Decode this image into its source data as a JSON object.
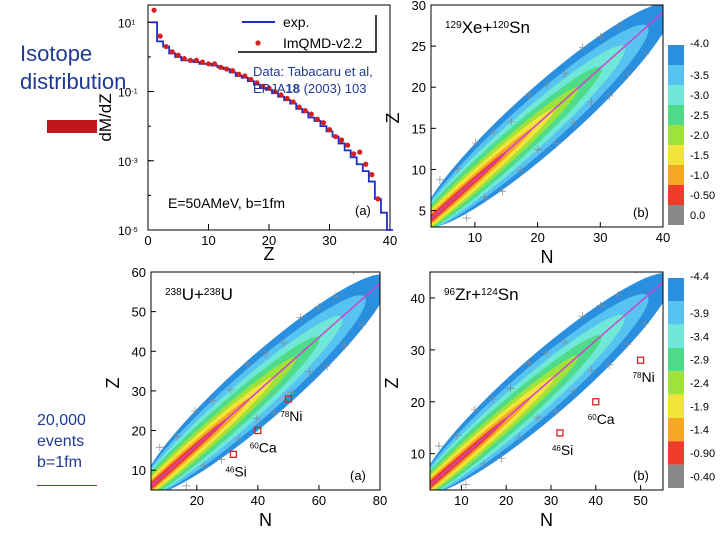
{
  "side": {
    "title_line1": "Isotope",
    "title_line2": "distribution",
    "marker_color": "#c0171d",
    "events_line1": "20,000",
    "events_line2": "events",
    "events_line3": "b=1fm"
  },
  "colors": {
    "accent_text": "#1f3a93",
    "exp_line": "#1f2fbf",
    "model_points": "#d42020",
    "diag_line": "#cc44cc",
    "square_marker": "#dd2020"
  },
  "chart_data": [
    {
      "id": "dmdz",
      "type": "line",
      "ylabel": "dM/dZ",
      "xlabel": "Z",
      "panel_label": "(a)",
      "xlim": [
        0,
        40
      ],
      "ylim_log10": [
        -5,
        1.5
      ],
      "x_ticks": [
        "0",
        "10",
        "20",
        "30",
        "40"
      ],
      "y_ticks": [
        {
          "base": "10",
          "exp": "1"
        },
        {
          "base": "10",
          "exp": "-1"
        },
        {
          "base": "10",
          "exp": "-3"
        },
        {
          "base": "10",
          "exp": "-5"
        }
      ],
      "legend": {
        "exp": "exp.",
        "model": "ImQMD-v2.2"
      },
      "data_note": "Data: Tabacaru et al,",
      "data_note2_pre": "EPJA",
      "data_note2_bold": "18",
      "data_note2_post": " (2003) 103",
      "condition": "E=50AMeV, b=1fm",
      "series": [
        {
          "name": "exp.",
          "style": "step",
          "x": [
            1,
            2,
            3,
            4,
            5,
            6,
            7,
            8,
            9,
            10,
            11,
            12,
            13,
            14,
            15,
            16,
            17,
            18,
            19,
            20,
            21,
            22,
            23,
            24,
            25,
            26,
            27,
            28,
            29,
            30,
            31,
            32,
            33,
            34,
            35,
            36,
            37,
            38,
            39,
            40
          ],
          "log10_y": [
            1.0,
            0.45,
            0.3,
            0.1,
            0.0,
            -0.1,
            -0.1,
            -0.15,
            -0.2,
            -0.2,
            -0.25,
            -0.3,
            -0.35,
            -0.45,
            -0.55,
            -0.6,
            -0.7,
            -0.8,
            -0.9,
            -0.95,
            -1.05,
            -1.15,
            -1.25,
            -1.35,
            -1.5,
            -1.6,
            -1.75,
            -1.85,
            -2.0,
            -2.15,
            -2.3,
            -2.5,
            -2.7,
            -2.9,
            -3.1,
            -3.3,
            -3.6,
            -4.1,
            -4.5,
            -5.0
          ]
        },
        {
          "name": "ImQMD-v2.2",
          "style": "points",
          "x": [
            1,
            2,
            3,
            4,
            5,
            6,
            7,
            8,
            9,
            10,
            11,
            12,
            13,
            14,
            15,
            16,
            17,
            18,
            19,
            20,
            21,
            22,
            23,
            24,
            25,
            26,
            27,
            28,
            29,
            30,
            31,
            32,
            33,
            34,
            35,
            36,
            37,
            38
          ],
          "log10_y": [
            1.35,
            0.6,
            0.3,
            0.15,
            0.05,
            -0.05,
            -0.1,
            -0.1,
            -0.15,
            -0.2,
            -0.2,
            -0.3,
            -0.35,
            -0.4,
            -0.5,
            -0.55,
            -0.65,
            -0.75,
            -0.85,
            -0.9,
            -1.0,
            -1.1,
            -1.2,
            -1.3,
            -1.45,
            -1.55,
            -1.65,
            -1.8,
            -1.9,
            -2.1,
            -2.3,
            -2.4,
            -2.55,
            -2.8,
            -2.75,
            -3.1,
            -3.4,
            -4.1
          ]
        }
      ]
    },
    {
      "id": "xe",
      "type": "heatmap",
      "reaction": {
        "a1": "129",
        "e1": "Xe",
        "a2": "120",
        "e2": "Sn"
      },
      "panel_label": "(b)",
      "xlabel": "N",
      "ylabel": "Z",
      "xlim": [
        3,
        40
      ],
      "ylim": [
        3,
        30
      ],
      "x_ticks": [
        10,
        20,
        30,
        40
      ],
      "y_ticks": [
        5,
        10,
        15,
        20,
        25,
        30
      ],
      "colorbar": [
        "-4.0",
        "-3.5",
        "-3.0",
        "-2.5",
        "-2.0",
        "-1.5",
        "-1.0",
        "-0.50",
        "0.0"
      ]
    },
    {
      "id": "u",
      "type": "heatmap",
      "reaction": {
        "a1": "238",
        "e1": "U",
        "a2": "238",
        "e2": "U"
      },
      "panel_label": "(a)",
      "xlabel": "N",
      "ylabel": "Z",
      "xlim": [
        5,
        80
      ],
      "ylim": [
        5,
        60
      ],
      "x_ticks": [
        20,
        40,
        60,
        80
      ],
      "y_ticks": [
        10,
        20,
        30,
        40,
        50,
        60
      ],
      "markers": [
        {
          "n": 50,
          "z": 28,
          "a": "78",
          "sym": "Ni"
        },
        {
          "n": 40,
          "z": 20,
          "a": "60",
          "sym": "Ca"
        },
        {
          "n": 32,
          "z": 14,
          "a": "46",
          "sym": "Si"
        }
      ]
    },
    {
      "id": "zr",
      "type": "heatmap",
      "reaction": {
        "a1": "96",
        "e1": "Zr",
        "a2": "124",
        "e2": "Sn"
      },
      "panel_label": "(b)",
      "xlabel": "N",
      "ylabel": "Z",
      "xlim": [
        3,
        55
      ],
      "ylim": [
        3,
        45
      ],
      "x_ticks": [
        10,
        20,
        30,
        40,
        50
      ],
      "y_ticks": [
        10,
        20,
        30,
        40
      ],
      "colorbar": [
        "-4.4",
        "-3.9",
        "-3.4",
        "-2.9",
        "-2.4",
        "-1.9",
        "-1.4",
        "-0.90",
        "-0.40"
      ],
      "markers": [
        {
          "n": 50,
          "z": 28,
          "a": "78",
          "sym": "Ni"
        },
        {
          "n": 40,
          "z": 20,
          "a": "60",
          "sym": "Ca"
        },
        {
          "n": 32,
          "z": 14,
          "a": "46",
          "sym": "Si"
        }
      ]
    }
  ]
}
